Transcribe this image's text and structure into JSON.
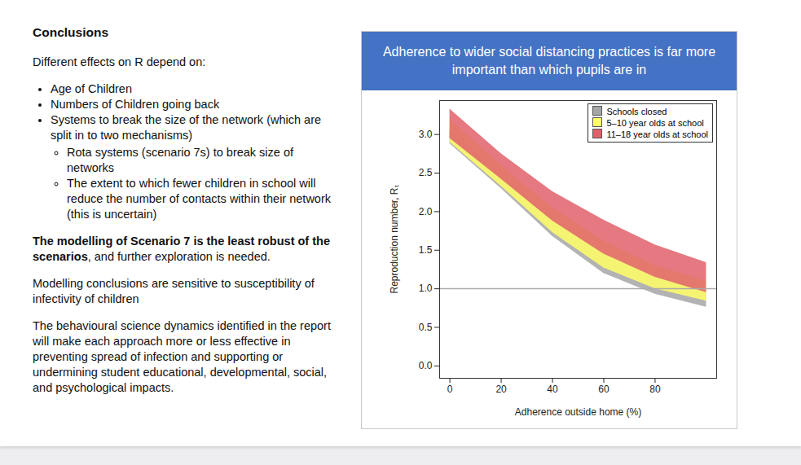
{
  "slide": {
    "heading": "Conclusions",
    "intro": "Different effects on R depend on:",
    "bullets": [
      {
        "text": "Age of Children"
      },
      {
        "text": "Numbers of Children going back"
      },
      {
        "text": "Systems to break the size of the network (which are split in to two mechanisms)",
        "sub": [
          "Rota systems (scenario 7s) to break size of networks",
          "The extent to which fewer children in school will reduce the number of contacts within their network (this is uncertain)"
        ]
      }
    ],
    "paragraphs": [
      {
        "bold": "The modelling of Scenario 7 is the least robust of the scenarios",
        "text": ", and further exploration is needed."
      },
      {
        "text": "Modelling conclusions are sensitive to susceptibility of infectivity of children"
      },
      {
        "text": "The behavioural science dynamics identified in the report will make each approach more or less effective in preventing spread of infection and supporting or undermining student educational, developmental, social, and psychological  impacts."
      }
    ]
  },
  "chart_data": {
    "type": "area",
    "title": "Adherence to wider social distancing practices is far more important than which pupils are in",
    "x_label": "Adherence outside home (%)",
    "y_label": "Reproduction number, Rₜ",
    "x": [
      0,
      20,
      40,
      60,
      80,
      100
    ],
    "series": [
      {
        "name": "Schools closed",
        "color": "#a6a6a6",
        "lower": [
          2.88,
          2.3,
          1.68,
          1.2,
          0.93,
          0.76
        ],
        "upper": [
          3.05,
          2.48,
          1.9,
          1.45,
          1.15,
          0.98
        ]
      },
      {
        "name": "5–10 year olds at school",
        "color": "#ffff66",
        "lower": [
          2.9,
          2.33,
          1.73,
          1.27,
          1.0,
          0.84
        ],
        "upper": [
          3.2,
          2.6,
          2.05,
          1.62,
          1.3,
          1.1
        ]
      },
      {
        "name": "11–18 year olds at school",
        "color": "#e0606a",
        "lower": [
          2.95,
          2.42,
          1.88,
          1.45,
          1.15,
          0.95
        ],
        "upper": [
          3.33,
          2.75,
          2.26,
          1.89,
          1.57,
          1.34
        ]
      }
    ],
    "reference_line": 1,
    "xlim": [
      -4,
      104
    ],
    "xticks": [
      0,
      20,
      40,
      60,
      80
    ],
    "ylim": [
      -0.16,
      3.44
    ],
    "yticks": [
      {
        "value": 0,
        "label": "0.0"
      },
      0.5,
      {
        "value": 1,
        "label": "1.0"
      },
      1.5,
      {
        "value": 2,
        "label": "2.0"
      },
      2.5,
      {
        "value": 3,
        "label": "3.0"
      }
    ],
    "legend": "top-right",
    "grid": false
  }
}
